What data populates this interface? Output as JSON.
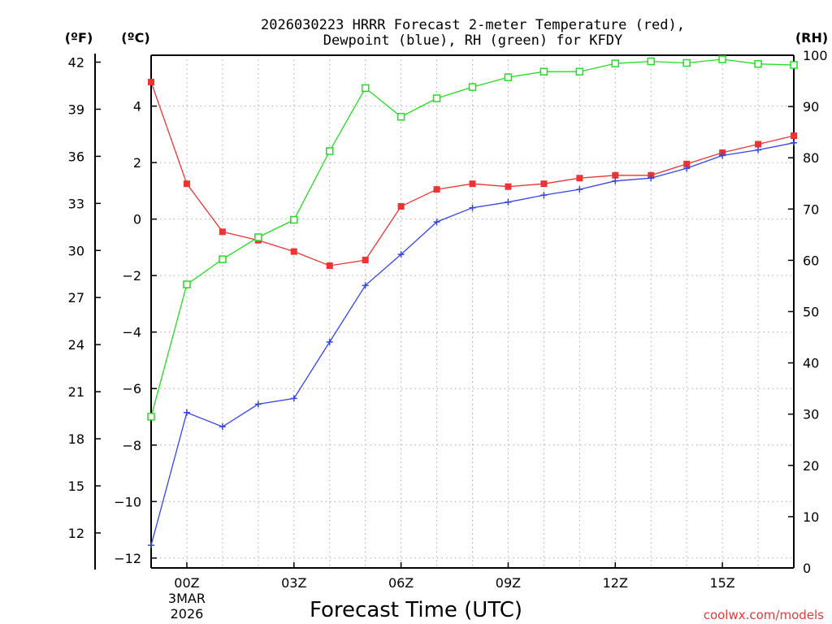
{
  "chart_data": {
    "type": "line",
    "title_line1": "2026030223 HRRR Forecast 2-meter Temperature (red),",
    "title_line2": "Dewpoint (blue), RH (green) for KFDY",
    "xlabel": "Forecast Time (UTC)",
    "watermark": "coolwx.com/models",
    "unit_labels": {
      "f": "(ºF)",
      "c": "(ºC)",
      "rh": "(RH)"
    },
    "x_hours": [
      -1,
      0,
      1,
      2,
      3,
      4,
      5,
      6,
      7,
      8,
      9,
      10,
      11,
      12,
      13,
      14,
      15,
      16,
      17
    ],
    "xlim": [
      -1,
      17
    ],
    "x_ticks": [
      {
        "hour": 0,
        "label": "00Z",
        "label2": "3MAR",
        "label3": "2026"
      },
      {
        "hour": 3,
        "label": "03Z",
        "label2": "",
        "label3": ""
      },
      {
        "hour": 6,
        "label": "06Z",
        "label2": "",
        "label3": ""
      },
      {
        "hour": 9,
        "label": "09Z",
        "label2": "",
        "label3": ""
      },
      {
        "hour": 12,
        "label": "12Z",
        "label2": "",
        "label3": ""
      },
      {
        "hour": 15,
        "label": "15Z",
        "label2": "",
        "label3": ""
      }
    ],
    "ylim_c": [
      -12.35,
      5.8
    ],
    "y_ticks_c": [
      {
        "v": 4,
        "label": "4"
      },
      {
        "v": 2,
        "label": "2"
      },
      {
        "v": 0,
        "label": "0"
      },
      {
        "v": -2,
        "label": "−2"
      },
      {
        "v": -4,
        "label": "−4"
      },
      {
        "v": -6,
        "label": "−6"
      },
      {
        "v": -8,
        "label": "−8"
      },
      {
        "v": -10,
        "label": "−10"
      },
      {
        "v": -12,
        "label": "−12"
      }
    ],
    "y_ticks_f": [
      {
        "v": 42,
        "label": "42"
      },
      {
        "v": 39,
        "label": "39"
      },
      {
        "v": 36,
        "label": "36"
      },
      {
        "v": 33,
        "label": "33"
      },
      {
        "v": 30,
        "label": "30"
      },
      {
        "v": 27,
        "label": "27"
      },
      {
        "v": 24,
        "label": "24"
      },
      {
        "v": 21,
        "label": "21"
      },
      {
        "v": 18,
        "label": "18"
      },
      {
        "v": 15,
        "label": "15"
      },
      {
        "v": 12,
        "label": "12"
      }
    ],
    "ylim_rh": [
      0,
      100
    ],
    "y_ticks_rh": [
      {
        "v": 100,
        "label": "100"
      },
      {
        "v": 90,
        "label": "90"
      },
      {
        "v": 80,
        "label": "80"
      },
      {
        "v": 70,
        "label": "70"
      },
      {
        "v": 60,
        "label": "60"
      },
      {
        "v": 50,
        "label": "50"
      },
      {
        "v": 40,
        "label": "40"
      },
      {
        "v": 30,
        "label": "30"
      },
      {
        "v": 20,
        "label": "20"
      },
      {
        "v": 10,
        "label": "10"
      },
      {
        "v": 0,
        "label": "0"
      }
    ],
    "grid": true,
    "series": [
      {
        "name": "Temperature",
        "unit": "C",
        "axis": "c",
        "color": "#ee3333",
        "marker": "filled-square",
        "values": [
          4.85,
          1.25,
          -0.45,
          -0.75,
          -1.15,
          -1.65,
          -1.45,
          0.45,
          1.05,
          1.25,
          1.15,
          1.25,
          1.45,
          1.55,
          1.55,
          1.95,
          2.35,
          2.65,
          2.95
        ]
      },
      {
        "name": "Dewpoint",
        "unit": "C",
        "axis": "c",
        "color": "#3344ee",
        "marker": "plus",
        "values": [
          -11.55,
          -6.85,
          -7.35,
          -6.55,
          -6.35,
          -4.35,
          -2.35,
          -1.25,
          -0.1,
          0.4,
          0.6,
          0.85,
          1.05,
          1.35,
          1.45,
          1.8,
          2.25,
          2.45,
          2.7
        ]
      },
      {
        "name": "RH",
        "unit": "%",
        "axis": "rh",
        "color": "#22dd22",
        "marker": "open-square",
        "values": [
          29.5,
          55.3,
          60.2,
          64.5,
          67.9,
          81.3,
          93.6,
          88.0,
          91.6,
          93.8,
          95.7,
          96.8,
          96.8,
          98.4,
          98.8,
          98.5,
          99.2,
          98.3,
          98.1
        ]
      }
    ]
  }
}
